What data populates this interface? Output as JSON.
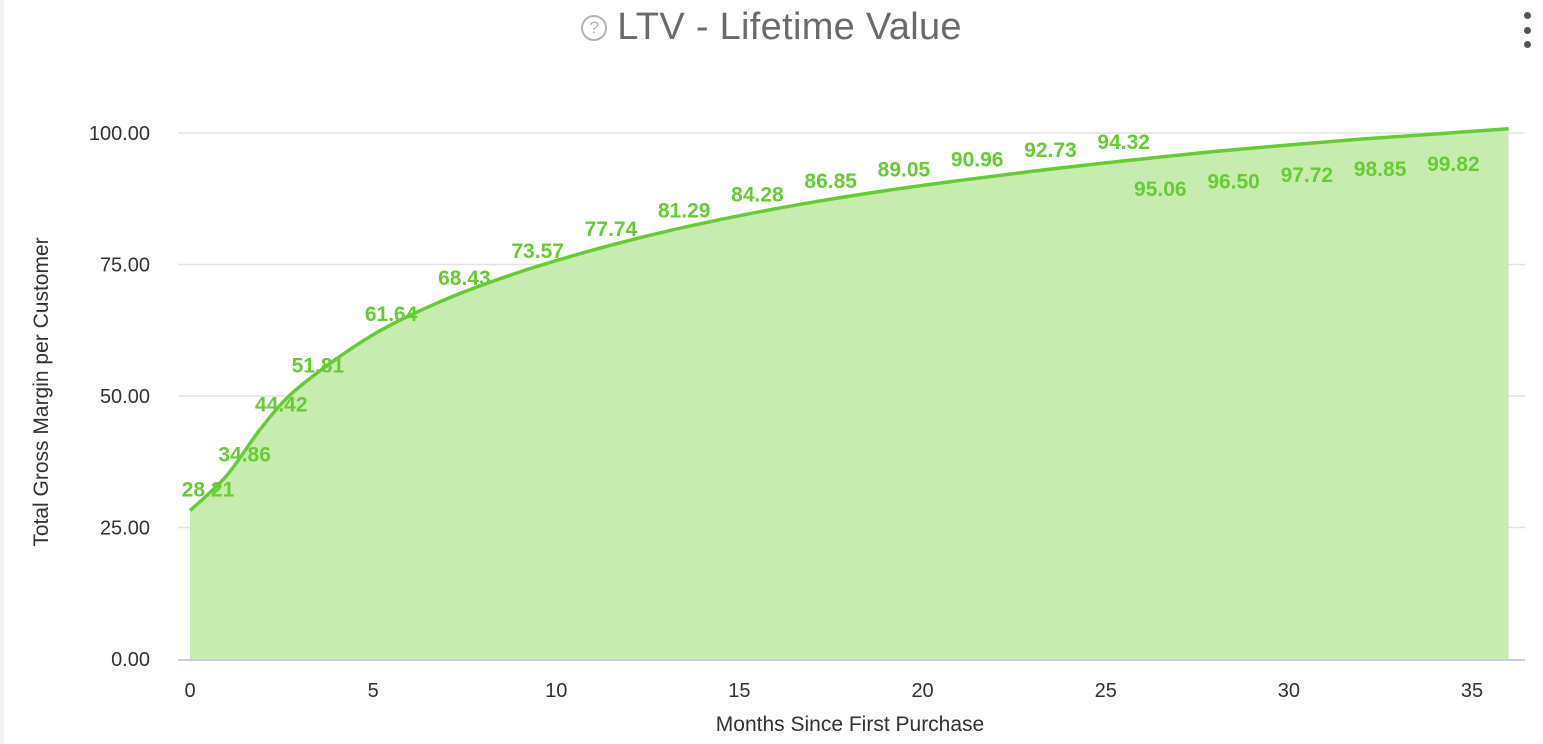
{
  "header": {
    "title": "LTV - Lifetime Value",
    "help_icon": "question-circle-icon",
    "menu_icon": "more-vertical-icon"
  },
  "chart_data": {
    "type": "area",
    "title": "LTV - Lifetime Value",
    "xlabel": "Months Since First Purchase",
    "ylabel": "Total Gross Margin per Customer",
    "xlim": [
      0,
      36.5
    ],
    "ylim": [
      0,
      100
    ],
    "x_ticks": [
      "0",
      "5",
      "10",
      "15",
      "20",
      "25",
      "30",
      "35"
    ],
    "y_ticks": [
      "0.00",
      "25.00",
      "50.00",
      "75.00",
      "100.00"
    ],
    "grid": true,
    "color": "#66cc33",
    "fill_color": "#c8ecb0",
    "x": [
      0,
      1,
      2,
      3,
      5,
      7,
      9,
      11,
      13,
      15,
      17,
      19,
      21,
      23,
      25,
      26,
      28,
      30,
      32,
      34,
      36
    ],
    "values": [
      28.21,
      34.86,
      44.42,
      51.81,
      61.64,
      68.43,
      73.57,
      77.74,
      81.29,
      84.28,
      86.85,
      89.05,
      90.96,
      92.73,
      94.32,
      95.06,
      96.5,
      97.72,
      98.85,
      99.82,
      100.8
    ],
    "data_labels": [
      {
        "x": 0,
        "text": "28.21"
      },
      {
        "x": 1,
        "text": "34.86"
      },
      {
        "x": 2,
        "text": "44.42"
      },
      {
        "x": 3,
        "text": "51.81"
      },
      {
        "x": 5,
        "text": "61.64"
      },
      {
        "x": 7,
        "text": "68.43"
      },
      {
        "x": 9,
        "text": "73.57"
      },
      {
        "x": 11,
        "text": "77.74"
      },
      {
        "x": 13,
        "text": "81.29"
      },
      {
        "x": 15,
        "text": "84.28"
      },
      {
        "x": 17,
        "text": "86.85"
      },
      {
        "x": 19,
        "text": "89.05"
      },
      {
        "x": 21,
        "text": "90.96"
      },
      {
        "x": 23,
        "text": "92.73"
      },
      {
        "x": 25,
        "text": "94.32"
      },
      {
        "x": 26,
        "text": "95.06",
        "position": "below"
      },
      {
        "x": 28,
        "text": "96.50",
        "position": "below"
      },
      {
        "x": 30,
        "text": "97.72",
        "position": "below"
      },
      {
        "x": 32,
        "text": "98.85",
        "position": "below"
      },
      {
        "x": 34,
        "text": "99.82",
        "position": "below"
      }
    ]
  }
}
